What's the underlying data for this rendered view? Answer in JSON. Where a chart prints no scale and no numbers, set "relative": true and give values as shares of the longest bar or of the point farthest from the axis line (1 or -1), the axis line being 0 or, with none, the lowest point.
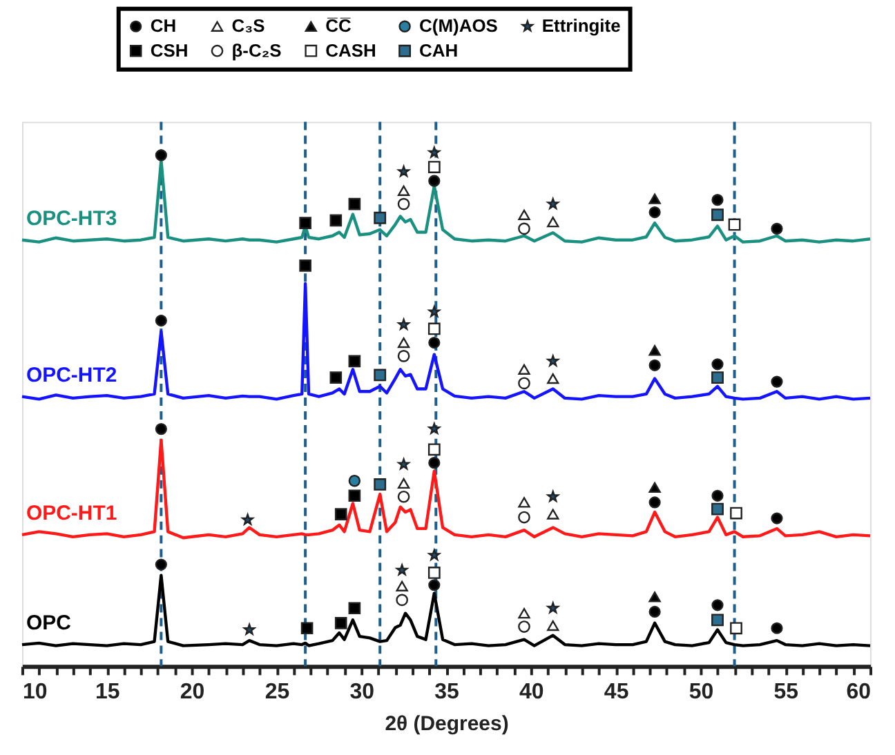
{
  "chart_data": {
    "type": "line",
    "relative": true,
    "xlabel": "2θ (Degrees)",
    "xlim": [
      10,
      60
    ],
    "xticks": [
      10,
      {
        "value": 11,
        "label": null
      },
      {
        "value": 12,
        "label": null
      },
      {
        "value": 13,
        "label": null
      },
      {
        "value": 14,
        "label": null
      },
      15,
      {
        "value": 16,
        "label": null
      },
      {
        "value": 17,
        "label": null
      },
      {
        "value": 18,
        "label": null
      },
      {
        "value": 19,
        "label": null
      },
      20,
      {
        "value": 21,
        "label": null
      },
      {
        "value": 22,
        "label": null
      },
      {
        "value": 23,
        "label": null
      },
      {
        "value": 24,
        "label": null
      },
      25,
      {
        "value": 26,
        "label": null
      },
      {
        "value": 27,
        "label": null
      },
      {
        "value": 28,
        "label": null
      },
      {
        "value": 29,
        "label": null
      },
      30,
      {
        "value": 31,
        "label": null
      },
      {
        "value": 32,
        "label": null
      },
      {
        "value": 33,
        "label": null
      },
      {
        "value": 34,
        "label": null
      },
      35,
      {
        "value": 36,
        "label": null
      },
      {
        "value": 37,
        "label": null
      },
      {
        "value": 38,
        "label": null
      },
      {
        "value": 39,
        "label": null
      },
      40,
      {
        "value": 41,
        "label": null
      },
      {
        "value": 42,
        "label": null
      },
      {
        "value": 43,
        "label": null
      },
      {
        "value": 44,
        "label": null
      },
      45,
      {
        "value": 46,
        "label": null
      },
      {
        "value": 47,
        "label": null
      },
      {
        "value": 48,
        "label": null
      },
      {
        "value": 49,
        "label": null
      },
      50,
      {
        "value": 51,
        "label": null
      },
      {
        "value": 52,
        "label": null
      },
      {
        "value": 53,
        "label": null
      },
      {
        "value": 54,
        "label": null
      },
      55,
      {
        "value": 56,
        "label": null
      },
      {
        "value": 57,
        "label": null
      },
      {
        "value": 58,
        "label": null
      },
      {
        "value": 59,
        "label": null
      },
      60
    ],
    "grid": false,
    "legend": "top",
    "line_style": "solid",
    "x": [
      10,
      11,
      12,
      13,
      14,
      15,
      16,
      17,
      17.8,
      18.2,
      18.6,
      19.5,
      21,
      22,
      23,
      23.4,
      24,
      25,
      26,
      26.5,
      26.7,
      26.9,
      27.5,
      28.3,
      28.7,
      29,
      29.5,
      29.9,
      30.5,
      31.1,
      31.5,
      32,
      32.3,
      32.6,
      32.9,
      33.3,
      33.8,
      34.3,
      34.8,
      35.5,
      36.5,
      37.5,
      38.5,
      39.6,
      40.2,
      41.3,
      42,
      43,
      44,
      45,
      46,
      46.8,
      47.3,
      47.9,
      48.5,
      49.5,
      50.5,
      51,
      51.5,
      52,
      52.5,
      53.5,
      54.5,
      55,
      56,
      57,
      58,
      59,
      60
    ],
    "series": [
      {
        "name": "OPC-HT3",
        "type": "line",
        "color": "#1a9080",
        "values": [
          0.83,
          0.826,
          0.834,
          0.828,
          0.83,
          0.832,
          0.828,
          0.83,
          0.835,
          0.985,
          0.835,
          0.828,
          0.832,
          0.828,
          0.832,
          0.83,
          0.83,
          0.826,
          0.832,
          0.835,
          0.857,
          0.835,
          0.832,
          0.838,
          0.845,
          0.835,
          0.88,
          0.84,
          0.842,
          0.85,
          0.838,
          0.86,
          0.876,
          0.865,
          0.87,
          0.845,
          0.845,
          0.935,
          0.85,
          0.832,
          0.828,
          0.83,
          0.828,
          0.838,
          0.828,
          0.844,
          0.828,
          0.826,
          0.834,
          0.83,
          0.83,
          0.836,
          0.863,
          0.835,
          0.828,
          0.83,
          0.836,
          0.857,
          0.83,
          0.838,
          0.826,
          0.828,
          0.838,
          0.828,
          0.83,
          0.826,
          0.83,
          0.828,
          0.832
        ]
      },
      {
        "name": "OPC-HT2",
        "type": "line",
        "color": "#1414ff",
        "values": [
          0.525,
          0.52,
          0.528,
          0.522,
          0.525,
          0.527,
          0.522,
          0.525,
          0.53,
          0.652,
          0.53,
          0.522,
          0.527,
          0.522,
          0.526,
          0.525,
          0.525,
          0.52,
          0.527,
          0.53,
          0.745,
          0.53,
          0.525,
          0.532,
          0.54,
          0.53,
          0.578,
          0.535,
          0.535,
          0.545,
          0.532,
          0.56,
          0.578,
          0.565,
          0.568,
          0.54,
          0.54,
          0.607,
          0.54,
          0.526,
          0.522,
          0.525,
          0.522,
          0.535,
          0.522,
          0.54,
          0.522,
          0.52,
          0.527,
          0.525,
          0.525,
          0.53,
          0.56,
          0.53,
          0.522,
          0.525,
          0.53,
          0.545,
          0.525,
          0.522,
          0.52,
          0.522,
          0.535,
          0.522,
          0.525,
          0.52,
          0.525,
          0.52,
          0.522
        ]
      },
      {
        "name": "OPC-HT1",
        "type": "line",
        "color": "#ff1a1a",
        "values": [
          0.256,
          0.262,
          0.258,
          0.252,
          0.256,
          0.258,
          0.252,
          0.256,
          0.262,
          0.44,
          0.262,
          0.25,
          0.256,
          0.252,
          0.258,
          0.27,
          0.256,
          0.252,
          0.256,
          0.258,
          0.256,
          0.256,
          0.258,
          0.265,
          0.275,
          0.262,
          0.317,
          0.265,
          0.262,
          0.335,
          0.262,
          0.28,
          0.31,
          0.3,
          0.305,
          0.268,
          0.268,
          0.38,
          0.27,
          0.256,
          0.252,
          0.256,
          0.252,
          0.265,
          0.252,
          0.27,
          0.258,
          0.252,
          0.258,
          0.256,
          0.254,
          0.262,
          0.3,
          0.262,
          0.252,
          0.256,
          0.262,
          0.29,
          0.256,
          0.262,
          0.252,
          0.254,
          0.268,
          0.254,
          0.256,
          0.262,
          0.252,
          0.256,
          0.254
        ]
      },
      {
        "name": "OPC",
        "type": "line",
        "color": "#000000",
        "values": [
          0.042,
          0.045,
          0.04,
          0.044,
          0.042,
          0.04,
          0.044,
          0.042,
          0.048,
          0.177,
          0.048,
          0.04,
          0.042,
          0.044,
          0.042,
          0.05,
          0.042,
          0.04,
          0.044,
          0.042,
          0.045,
          0.04,
          0.044,
          0.05,
          0.065,
          0.052,
          0.09,
          0.058,
          0.055,
          0.048,
          0.05,
          0.075,
          0.08,
          0.103,
          0.09,
          0.058,
          0.052,
          0.142,
          0.052,
          0.042,
          0.044,
          0.04,
          0.042,
          0.052,
          0.04,
          0.06,
          0.042,
          0.04,
          0.044,
          0.042,
          0.042,
          0.048,
          0.084,
          0.048,
          0.042,
          0.04,
          0.046,
          0.071,
          0.046,
          0.042,
          0.04,
          0.042,
          0.05,
          0.042,
          0.04,
          0.044,
          0.04,
          0.042,
          0.04
        ]
      },
      {
        "name": "CH",
        "type": "scatter",
        "marker": "circle",
        "color": "#000000",
        "x": [
          18.2,
          34.3,
          47.3,
          51,
          54.5,
          18.2,
          34.3,
          47.3,
          51,
          54.5,
          18.2,
          34.3,
          47.3,
          51,
          54.5,
          18.2,
          34.3,
          47.3,
          51,
          54.5
        ],
        "values": [
          0.995,
          0.945,
          0.884,
          0.908,
          0.852,
          0.673,
          0.63,
          0.586,
          0.588,
          0.554,
          0.462,
          0.396,
          0.319,
          0.332,
          0.288,
          0.198,
          0.158,
          0.106,
          0.119,
          0.074
        ]
      },
      {
        "name": "C₃S",
        "type": "scatter",
        "marker": "triangle",
        "color": "#ffffff",
        "x": [
          32.5,
          39.6,
          41.3,
          32.5,
          39.6,
          41.3,
          32.5,
          39.6,
          41.3,
          32.4,
          39.6,
          41.3
        ],
        "values": [
          0.926,
          0.879,
          0.865,
          0.63,
          0.578,
          0.56,
          0.356,
          0.319,
          0.296,
          0.156,
          0.103,
          0.079
        ]
      },
      {
        "name": "C̅C̅",
        "type": "scatter",
        "marker": "triangle",
        "color": "#000000",
        "x": [
          47.3,
          47.3,
          47.3,
          47.3
        ],
        "values": [
          0.91,
          0.615,
          0.348,
          0.135
        ]
      },
      {
        "name": "C(M)AOS",
        "type": "scatter",
        "marker": "circle",
        "color": "#2a7ea0",
        "x": [
          29.6
        ],
        "values": [
          0.361
        ]
      },
      {
        "name": "Ettringite",
        "type": "scatter",
        "marker": "star",
        "color": "#1f4e6e",
        "x": [
          32.5,
          34.3,
          41.3,
          32.5,
          34.3,
          41.3,
          23.3,
          32.5,
          34.3,
          41.3,
          23.4,
          32.4,
          34.3,
          41.3
        ],
        "values": [
          0.963,
          1.0,
          0.9,
          0.665,
          0.69,
          0.594,
          0.285,
          0.393,
          0.462,
          0.33,
          0.071,
          0.187,
          0.216,
          0.113
        ]
      },
      {
        "name": "CSH",
        "type": "scatter",
        "marker": "square",
        "color": "#000000",
        "x": [
          26.7,
          28.5,
          29.6,
          26.7,
          28.5,
          29.6,
          28.8,
          29.6,
          26.8,
          28.8,
          29.6
        ],
        "values": [
          0.863,
          0.868,
          0.9,
          0.78,
          0.562,
          0.594,
          0.296,
          0.332,
          0.074,
          0.084,
          0.113
        ]
      },
      {
        "name": "β-C₂S",
        "type": "scatter",
        "marker": "circle",
        "color": "#ffffff",
        "x": [
          32.5,
          39.6,
          32.5,
          39.6,
          32.5,
          39.6,
          32.4,
          39.6
        ],
        "values": [
          0.9,
          0.852,
          0.604,
          0.551,
          0.33,
          0.29,
          0.129,
          0.077
        ]
      },
      {
        "name": "CASH",
        "type": "scatter",
        "marker": "square",
        "color": "#ffffff",
        "x": [
          34.3,
          52.0,
          34.3,
          34.3,
          52.1,
          34.3,
          52.1
        ],
        "values": [
          0.972,
          0.86,
          0.657,
          0.422,
          0.298,
          0.182,
          0.074
        ]
      },
      {
        "name": "CAH",
        "type": "scatter",
        "marker": "square",
        "color": "#2d6e8e",
        "x": [
          31.1,
          51,
          31.1,
          51,
          31.1,
          51,
          51
        ],
        "values": [
          0.873,
          0.879,
          0.567,
          0.562,
          0.354,
          0.306,
          0.09
        ]
      }
    ],
    "ref_lines": [
      {
        "axis": "x",
        "value": 18.2,
        "color": "#1f5f8b",
        "line_style": "dashed"
      },
      {
        "axis": "x",
        "value": 26.7,
        "color": "#1f5f8b",
        "line_style": "dashed"
      },
      {
        "axis": "x",
        "value": 31.1,
        "color": "#1f5f8b",
        "line_style": "dashed"
      },
      {
        "axis": "x",
        "value": 34.4,
        "color": "#1f5f8b",
        "line_style": "dashed"
      },
      {
        "axis": "x",
        "value": 52.0,
        "color": "#1f5f8b",
        "line_style": "dashed"
      }
    ]
  }
}
